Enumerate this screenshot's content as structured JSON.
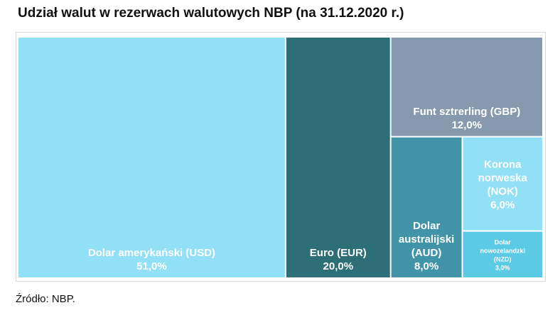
{
  "title": "Udział walut w rezerwach walutowych NBP (na 31.12.2020 r.)",
  "source": "Źródło: NBP.",
  "chart_data": {
    "type": "treemap",
    "title": "Udział walut w rezerwach walutowych NBP (na 31.12.2020 r.)",
    "unit": "%",
    "items": [
      {
        "name": "Dolar amerykański (USD)",
        "label_lines": [
          "Dolar amerykański (USD)"
        ],
        "value": 51.0,
        "value_label": "51,0%",
        "color": "#92e0f5",
        "text_color": "#ffffff"
      },
      {
        "name": "Euro (EUR)",
        "label_lines": [
          "Euro (EUR)"
        ],
        "value": 20.0,
        "value_label": "20,0%",
        "color": "#2e6e76",
        "text_color": "#ffffff"
      },
      {
        "name": "Funt sztrerling (GBP)",
        "label_lines": [
          "Funt sztrerling (GBP)"
        ],
        "value": 12.0,
        "value_label": "12,0%",
        "color": "#8699ae",
        "text_color": "#ffffff"
      },
      {
        "name": "Dolar australijski (AUD)",
        "label_lines": [
          "Dolar",
          "australijski",
          "(AUD)"
        ],
        "value": 8.0,
        "value_label": "8,0%",
        "color": "#4194a7",
        "text_color": "#ffffff"
      },
      {
        "name": "Korona norweska (NOK)",
        "label_lines": [
          "Korona",
          "norweska",
          "(NOK)"
        ],
        "value": 6.0,
        "value_label": "6,0%",
        "color": "#92e0f5",
        "text_color": "#ffffff"
      },
      {
        "name": "Dolar nowozelandzki (NZD)",
        "label_lines": [
          "Dolar",
          "nowozelandzki",
          "(NZD)"
        ],
        "value": 3.0,
        "value_label": "3,0%",
        "color": "#5ccae4",
        "text_color": "#ffffff"
      }
    ]
  }
}
